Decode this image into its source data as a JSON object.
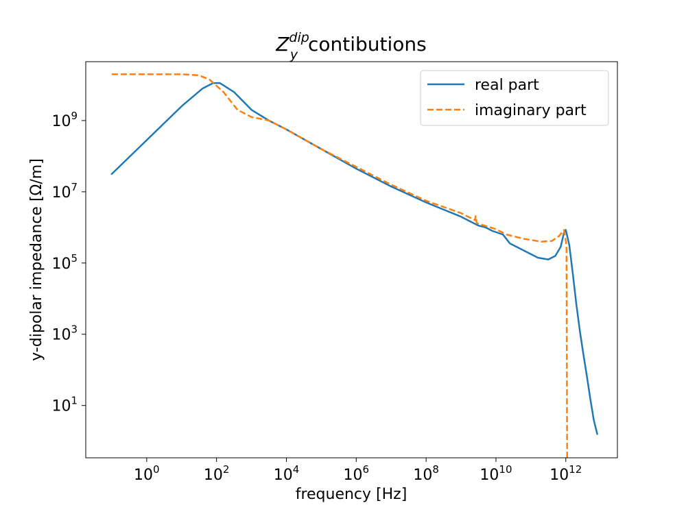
{
  "chart_data": {
    "type": "line",
    "title": {
      "main": "Z",
      "sub": "y",
      "sup": "dip",
      "rest": " contibutions"
    },
    "xlabel": "frequency [Hz]",
    "ylabel": "y-dipolar impedance [Ω/m]",
    "x_scale": "log",
    "y_scale": "log",
    "xlim": [
      0.018,
      30000000000000.0
    ],
    "ylim": [
      0.34,
      45000000000.0
    ],
    "x_ticks": [
      {
        "base": "10",
        "exp": "0",
        "value": 1
      },
      {
        "base": "10",
        "exp": "2",
        "value": 100
      },
      {
        "base": "10",
        "exp": "4",
        "value": 10000
      },
      {
        "base": "10",
        "exp": "6",
        "value": 1000000
      },
      {
        "base": "10",
        "exp": "8",
        "value": 100000000
      },
      {
        "base": "10",
        "exp": "10",
        "value": 10000000000
      },
      {
        "base": "10",
        "exp": "12",
        "value": 1000000000000
      }
    ],
    "y_ticks": [
      {
        "base": "10",
        "exp": "1",
        "value": 10
      },
      {
        "base": "10",
        "exp": "3",
        "value": 1000
      },
      {
        "base": "10",
        "exp": "5",
        "value": 100000
      },
      {
        "base": "10",
        "exp": "7",
        "value": 10000000
      },
      {
        "base": "10",
        "exp": "9",
        "value": 1000000000
      }
    ],
    "legend": {
      "position": "top-right",
      "entries": [
        "real part",
        "imaginary part"
      ]
    },
    "series": [
      {
        "name": "real part",
        "color": "#1f77b4",
        "style": "solid",
        "log_points": [
          [
            -1.0,
            7.5
          ],
          [
            0.0,
            8.45
          ],
          [
            1.0,
            9.4
          ],
          [
            1.6,
            9.9
          ],
          [
            1.9,
            10.05
          ],
          [
            2.1,
            10.05
          ],
          [
            2.5,
            9.8
          ],
          [
            3.0,
            9.3
          ],
          [
            3.5,
            9.0
          ],
          [
            4.0,
            8.75
          ],
          [
            5.0,
            8.2
          ],
          [
            6.0,
            7.65
          ],
          [
            7.0,
            7.15
          ],
          [
            8.0,
            6.7
          ],
          [
            9.0,
            6.3
          ],
          [
            9.5,
            6.05
          ],
          [
            9.7,
            6.0
          ],
          [
            9.9,
            5.9
          ],
          [
            10.2,
            5.8
          ],
          [
            10.4,
            5.55
          ],
          [
            10.8,
            5.35
          ],
          [
            11.2,
            5.15
          ],
          [
            11.5,
            5.1
          ],
          [
            11.7,
            5.2
          ],
          [
            11.85,
            5.45
          ],
          [
            11.95,
            5.85
          ],
          [
            12.0,
            5.93
          ],
          [
            12.1,
            5.5
          ],
          [
            12.2,
            4.7
          ],
          [
            12.3,
            3.85
          ],
          [
            12.4,
            3.1
          ],
          [
            12.5,
            2.45
          ],
          [
            12.6,
            1.85
          ],
          [
            12.7,
            1.2
          ],
          [
            12.8,
            0.6
          ],
          [
            12.9,
            0.2
          ]
        ]
      },
      {
        "name": "imaginary part",
        "color": "#ff7f0e",
        "style": "dashed",
        "log_points": [
          [
            -1.0,
            10.3
          ],
          [
            0.0,
            10.3
          ],
          [
            1.0,
            10.3
          ],
          [
            1.5,
            10.27
          ],
          [
            1.8,
            10.15
          ],
          [
            2.2,
            9.8
          ],
          [
            2.6,
            9.3
          ],
          [
            3.0,
            9.1
          ],
          [
            3.5,
            9.0
          ],
          [
            4.0,
            8.75
          ],
          [
            5.0,
            8.2
          ],
          [
            6.0,
            7.7
          ],
          [
            7.0,
            7.2
          ],
          [
            8.0,
            6.75
          ],
          [
            9.0,
            6.4
          ],
          [
            9.4,
            6.2
          ],
          [
            9.42,
            6.32
          ],
          [
            9.45,
            6.12
          ],
          [
            10.0,
            5.95
          ],
          [
            10.3,
            5.8
          ],
          [
            10.8,
            5.68
          ],
          [
            11.3,
            5.6
          ],
          [
            11.6,
            5.62
          ],
          [
            11.8,
            5.75
          ],
          [
            11.95,
            5.93
          ],
          [
            12.02,
            5.5
          ],
          [
            12.04,
            -1.0
          ]
        ]
      }
    ]
  }
}
